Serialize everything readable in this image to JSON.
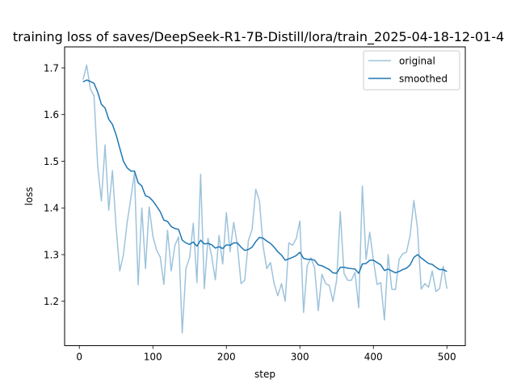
{
  "chart_data": {
    "type": "line",
    "title": "training loss of saves/DeepSeek-R1-7B-Distill/lora/train_2025-04-18-12-01-4",
    "xlabel": "step",
    "ylabel": "loss",
    "xlim": [
      -20,
      525
    ],
    "ylim": [
      1.105,
      1.745
    ],
    "x_ticks": [
      0,
      100,
      200,
      300,
      400,
      500
    ],
    "y_ticks": [
      1.2,
      1.3,
      1.4,
      1.5,
      1.6,
      1.7
    ],
    "x_tick_labels": [
      "0",
      "100",
      "200",
      "300",
      "400",
      "500"
    ],
    "y_tick_labels": [
      "1.2",
      "1.3",
      "1.4",
      "1.5",
      "1.6",
      "1.7"
    ],
    "legend": "top-right",
    "series": [
      {
        "name": "original",
        "color": "#9dc3dc",
        "x": [
          5,
          10,
          15,
          20,
          25,
          30,
          35,
          40,
          45,
          50,
          55,
          60,
          65,
          70,
          75,
          80,
          85,
          90,
          95,
          100,
          105,
          110,
          115,
          120,
          125,
          130,
          135,
          140,
          145,
          150,
          155,
          160,
          165,
          170,
          175,
          180,
          185,
          190,
          195,
          200,
          205,
          210,
          215,
          220,
          225,
          230,
          235,
          240,
          245,
          250,
          255,
          260,
          265,
          270,
          275,
          280,
          285,
          290,
          295,
          300,
          305,
          310,
          315,
          320,
          325,
          330,
          335,
          340,
          345,
          350,
          355,
          360,
          365,
          370,
          375,
          380,
          385,
          390,
          395,
          400,
          405,
          410,
          415,
          420,
          425,
          430,
          435,
          440,
          445,
          450,
          455,
          460,
          465,
          470,
          475,
          480,
          485,
          490,
          495,
          500
        ],
        "values": [
          1.675,
          1.706,
          1.655,
          1.64,
          1.49,
          1.415,
          1.535,
          1.395,
          1.48,
          1.36,
          1.265,
          1.3,
          1.368,
          1.42,
          1.475,
          1.235,
          1.4,
          1.27,
          1.402,
          1.34,
          1.31,
          1.295,
          1.236,
          1.352,
          1.265,
          1.32,
          1.338,
          1.132,
          1.27,
          1.294,
          1.367,
          1.24,
          1.472,
          1.227,
          1.335,
          1.296,
          1.246,
          1.341,
          1.28,
          1.39,
          1.306,
          1.369,
          1.32,
          1.238,
          1.245,
          1.33,
          1.354,
          1.44,
          1.415,
          1.318,
          1.27,
          1.283,
          1.238,
          1.212,
          1.238,
          1.2,
          1.325,
          1.32,
          1.334,
          1.372,
          1.176,
          1.276,
          1.293,
          1.272,
          1.18,
          1.258,
          1.238,
          1.234,
          1.2,
          1.245,
          1.392,
          1.26,
          1.245,
          1.245,
          1.262,
          1.186,
          1.447,
          1.29,
          1.348,
          1.288,
          1.236,
          1.24,
          1.16,
          1.3,
          1.226,
          1.225,
          1.29,
          1.302,
          1.305,
          1.342,
          1.416,
          1.356,
          1.226,
          1.238,
          1.23,
          1.265,
          1.221,
          1.227,
          1.275,
          1.227
        ]
      },
      {
        "name": "smoothed",
        "color": "#1f77b4",
        "x": [
          5,
          10,
          15,
          20,
          25,
          30,
          35,
          40,
          45,
          50,
          55,
          60,
          65,
          70,
          75,
          80,
          85,
          90,
          95,
          100,
          105,
          110,
          115,
          120,
          125,
          130,
          135,
          140,
          145,
          150,
          155,
          160,
          165,
          170,
          175,
          180,
          185,
          190,
          195,
          200,
          205,
          210,
          215,
          220,
          225,
          230,
          235,
          240,
          245,
          250,
          255,
          260,
          265,
          270,
          275,
          280,
          285,
          290,
          295,
          300,
          305,
          310,
          315,
          320,
          325,
          330,
          335,
          340,
          345,
          350,
          355,
          360,
          365,
          370,
          375,
          380,
          385,
          390,
          395,
          400,
          405,
          410,
          415,
          420,
          425,
          430,
          435,
          440,
          445,
          450,
          455,
          460,
          465,
          470,
          475,
          480,
          485,
          490,
          495,
          500
        ],
        "values": [
          1.67,
          1.674,
          1.671,
          1.667,
          1.648,
          1.622,
          1.614,
          1.59,
          1.579,
          1.557,
          1.528,
          1.5,
          1.486,
          1.479,
          1.479,
          1.454,
          1.447,
          1.426,
          1.423,
          1.415,
          1.404,
          1.392,
          1.374,
          1.371,
          1.36,
          1.356,
          1.354,
          1.331,
          1.325,
          1.322,
          1.327,
          1.318,
          1.331,
          1.323,
          1.324,
          1.321,
          1.314,
          1.317,
          1.313,
          1.321,
          1.32,
          1.325,
          1.325,
          1.316,
          1.309,
          1.311,
          1.316,
          1.328,
          1.337,
          1.335,
          1.329,
          1.324,
          1.316,
          1.306,
          1.299,
          1.288,
          1.291,
          1.294,
          1.298,
          1.305,
          1.292,
          1.29,
          1.29,
          1.288,
          1.278,
          1.276,
          1.272,
          1.268,
          1.261,
          1.26,
          1.273,
          1.273,
          1.271,
          1.27,
          1.269,
          1.26,
          1.28,
          1.281,
          1.288,
          1.288,
          1.283,
          1.278,
          1.266,
          1.269,
          1.265,
          1.261,
          1.264,
          1.268,
          1.271,
          1.278,
          1.294,
          1.3,
          1.293,
          1.287,
          1.281,
          1.279,
          1.273,
          1.268,
          1.268,
          1.264
        ]
      }
    ]
  }
}
